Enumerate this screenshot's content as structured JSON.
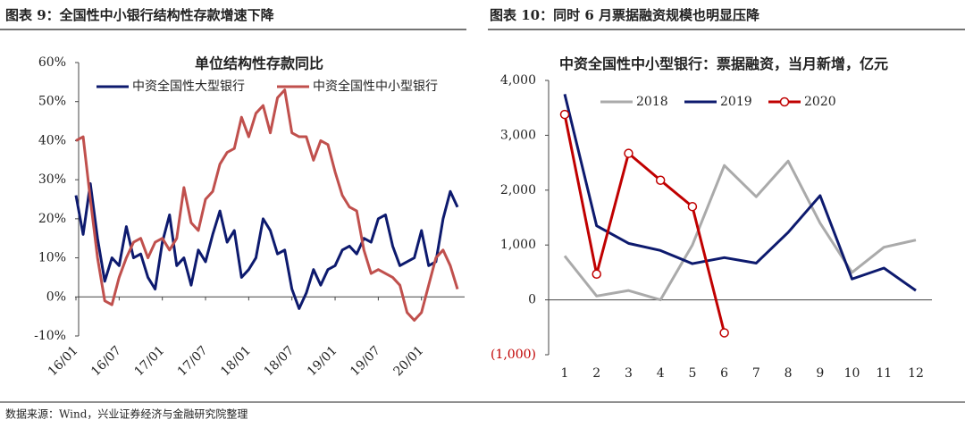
{
  "chart_data": [
    {
      "type": "line",
      "caption": "图表 9：全国性中小银行结构性存款增速下降",
      "title": "单位结构性存款同比",
      "categories": [
        "16/01",
        null,
        null,
        null,
        null,
        null,
        "16/07",
        null,
        null,
        null,
        null,
        null,
        "17/01",
        null,
        null,
        null,
        null,
        null,
        "17/07",
        null,
        null,
        null,
        null,
        null,
        "18/01",
        null,
        null,
        null,
        null,
        null,
        "18/07",
        null,
        null,
        null,
        null,
        null,
        "19/01",
        null,
        null,
        null,
        null,
        null,
        "19/07",
        null,
        null,
        null,
        null,
        null,
        "20/01",
        null,
        null,
        null,
        null,
        null
      ],
      "series": [
        {
          "name": "中资全国性大型银行",
          "color": "#0d1a6e",
          "values": [
            26,
            16,
            29,
            15,
            4,
            10,
            8,
            18,
            10,
            11,
            5,
            2,
            14,
            21,
            8,
            10,
            3,
            12,
            9,
            16,
            22,
            14,
            17,
            5,
            7,
            10,
            20,
            17,
            11,
            12,
            2,
            -3,
            1,
            7,
            3,
            7,
            8,
            12,
            13,
            11,
            15,
            14,
            20,
            21,
            13,
            8,
            9,
            10,
            17,
            8,
            9,
            20,
            27,
            23
          ]
        },
        {
          "name": "中资全国性中小型银行",
          "color": "#c0504d",
          "values": [
            40,
            41,
            25,
            10,
            -1,
            -2,
            5,
            10,
            14,
            15,
            10,
            14,
            15,
            12,
            15,
            28,
            19,
            17,
            25,
            27,
            34,
            37,
            38,
            46,
            41,
            47,
            49,
            42,
            51,
            53,
            42,
            41,
            41,
            35,
            40,
            39,
            32,
            26,
            23,
            22,
            12,
            6,
            7,
            6,
            5,
            3,
            -4,
            -6,
            -4,
            3,
            10,
            12,
            8,
            2
          ]
        }
      ],
      "ylim": [
        -10,
        60
      ],
      "yticks": [
        {
          "value": -10,
          "label": "-10%"
        },
        {
          "value": 0,
          "label": "0%"
        },
        {
          "value": 10,
          "label": "10%"
        },
        {
          "value": 20,
          "label": "20%"
        },
        {
          "value": 30,
          "label": "30%"
        },
        {
          "value": 40,
          "label": "40%"
        },
        {
          "value": 50,
          "label": "50%"
        },
        {
          "value": 60,
          "label": "60%"
        }
      ],
      "grid": false
    },
    {
      "type": "line",
      "caption": "图表 10：同时 6 月票据融资规模也明显压降",
      "title": "中资全国性中小型银行：票据融资，当月新增，亿元",
      "categories": [
        "1",
        "2",
        "3",
        "4",
        "5",
        "6",
        "7",
        "8",
        "9",
        "10",
        "11",
        "12"
      ],
      "series": [
        {
          "name": "2018",
          "color": "#aaaaaa",
          "values": [
            800,
            70,
            170,
            0,
            1000,
            2450,
            1880,
            2530,
            1400,
            500,
            960,
            1090
          ]
        },
        {
          "name": "2019",
          "color": "#0d1a6e",
          "values": [
            3750,
            1350,
            1030,
            900,
            660,
            770,
            670,
            1230,
            1900,
            380,
            580,
            170
          ]
        },
        {
          "name": "2020",
          "color": "#c00000",
          "markers": true,
          "values": [
            3380,
            470,
            2670,
            2180,
            1700,
            -600,
            null,
            null,
            null,
            null,
            null,
            null
          ]
        }
      ],
      "ylim": [
        -1000,
        4000
      ],
      "yticks": [
        {
          "value": -1000,
          "label": "(1,000)"
        },
        {
          "value": 0,
          "label": "0"
        },
        {
          "value": 1000,
          "label": "1,000"
        },
        {
          "value": 2000,
          "label": "2,000"
        },
        {
          "value": 3000,
          "label": "3,000"
        },
        {
          "value": 4000,
          "label": "4,000"
        }
      ],
      "grid": false
    }
  ],
  "source": "数据来源：Wind，兴业证券经济与金融研究院整理"
}
